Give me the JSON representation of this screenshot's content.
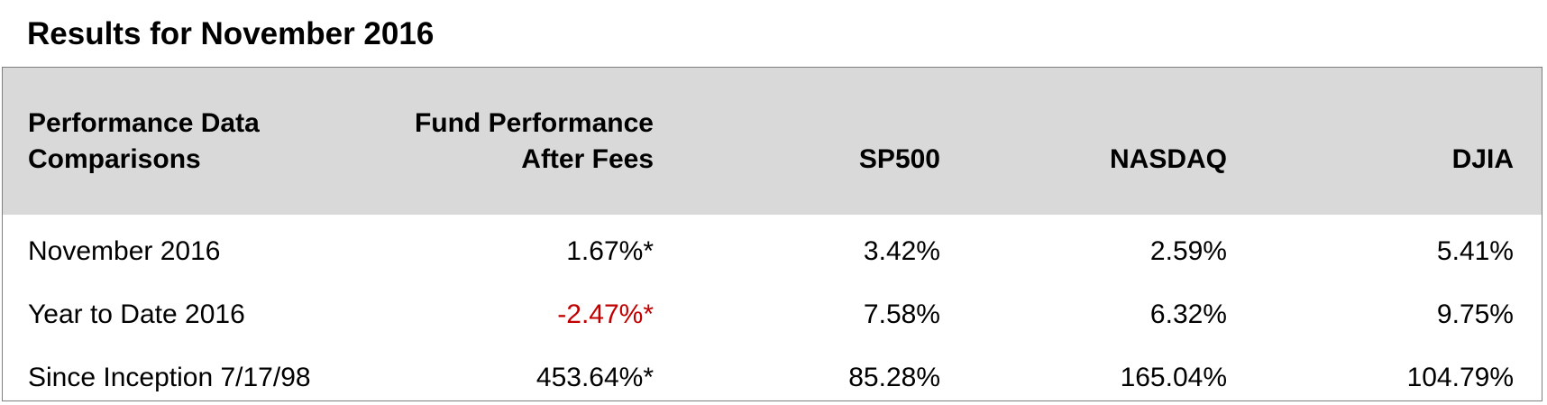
{
  "title": "Results for November 2016",
  "table": {
    "headers": [
      [
        "Performance Data",
        "Comparisons"
      ],
      [
        "Fund Performance",
        "After Fees"
      ],
      [
        "SP500"
      ],
      [
        "NASDAQ"
      ],
      [
        "DJIA"
      ]
    ],
    "rows": [
      {
        "label": "November 2016",
        "fund": "1.67%*",
        "sp500": "3.42%",
        "nasdaq": "2.59%",
        "djia": "5.41%"
      },
      {
        "label": "Year to Date 2016",
        "fund": "-2.47%*",
        "sp500": "7.58%",
        "nasdaq": "6.32%",
        "djia": "9.75%"
      },
      {
        "label": "Since Inception 7/17/98",
        "fund": "453.64%*",
        "sp500": "85.28%",
        "nasdaq": "165.04%",
        "djia": "104.79%"
      }
    ]
  },
  "colors": {
    "header_background": "#d9d9d9",
    "border": "#7f7f7f",
    "negative_value": "#c00000",
    "text": "#000000"
  }
}
